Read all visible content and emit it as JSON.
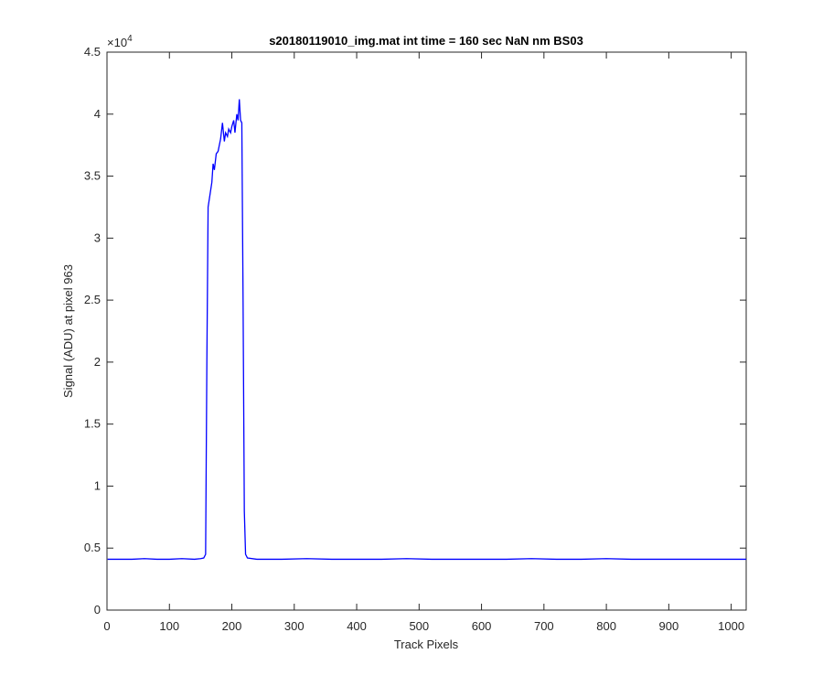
{
  "chart_data": {
    "type": "line",
    "title": "s20180119010_img.mat int time = 160 sec  NaN nm BS03",
    "x_label": "Track Pixels",
    "y_label": "Signal (ADU) at pixel 963",
    "y_multiplier": {
      "base": "×10",
      "exponent": "4"
    },
    "xlim": [
      0,
      1024
    ],
    "ylim": [
      0,
      4.5
    ],
    "xticks": [
      0,
      100,
      200,
      300,
      400,
      500,
      600,
      700,
      800,
      900,
      1000
    ],
    "yticks": [
      0,
      0.5,
      1,
      1.5,
      2,
      2.5,
      3,
      3.5,
      4,
      4.5
    ],
    "grid": false,
    "x": [
      1,
      20,
      40,
      60,
      80,
      100,
      120,
      140,
      150,
      155,
      158,
      160,
      162,
      165,
      168,
      170,
      172,
      175,
      178,
      180,
      182,
      185,
      188,
      190,
      193,
      195,
      198,
      200,
      203,
      205,
      208,
      210,
      212,
      214,
      216,
      218,
      220,
      222,
      225,
      240,
      280,
      320,
      360,
      400,
      440,
      480,
      520,
      560,
      600,
      640,
      680,
      720,
      760,
      800,
      840,
      880,
      920,
      960,
      1000,
      1024
    ],
    "series": [
      {
        "name": "Signal",
        "color": "#0000ff",
        "values": [
          0.41,
          0.41,
          0.41,
          0.415,
          0.41,
          0.41,
          0.415,
          0.41,
          0.415,
          0.42,
          0.45,
          2.0,
          3.25,
          3.35,
          3.45,
          3.6,
          3.55,
          3.68,
          3.7,
          3.75,
          3.8,
          3.93,
          3.78,
          3.85,
          3.82,
          3.88,
          3.85,
          3.9,
          3.95,
          3.85,
          4.0,
          3.95,
          4.12,
          3.95,
          3.93,
          2.5,
          0.8,
          0.45,
          0.42,
          0.41,
          0.41,
          0.415,
          0.41,
          0.41,
          0.41,
          0.415,
          0.41,
          0.41,
          0.41,
          0.41,
          0.415,
          0.41,
          0.41,
          0.415,
          0.41,
          0.41,
          0.41,
          0.41,
          0.41,
          0.41
        ]
      }
    ]
  }
}
